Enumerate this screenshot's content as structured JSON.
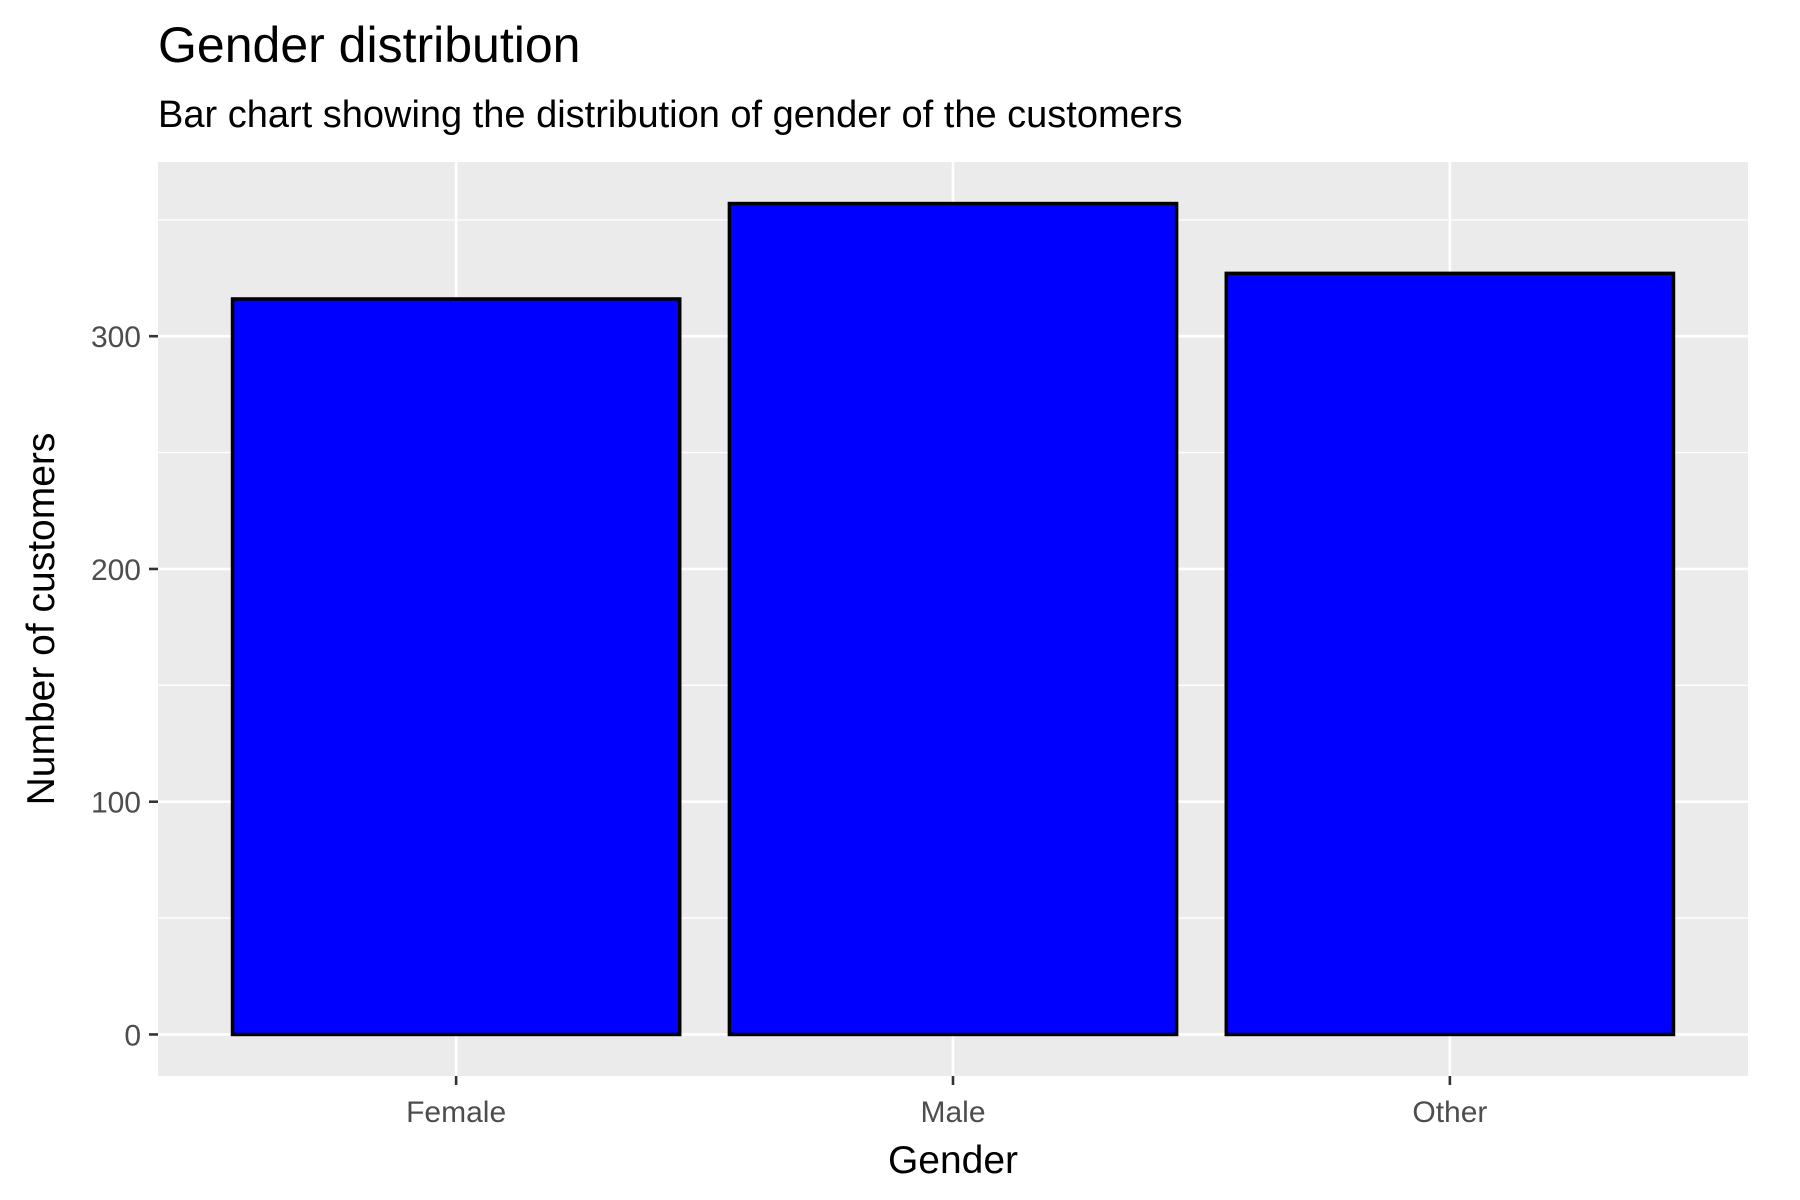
{
  "chart_data": {
    "type": "bar",
    "title": "Gender distribution",
    "subtitle": "Bar chart showing the distribution of gender of the customers",
    "xlabel": "Gender",
    "ylabel": "Number of customers",
    "categories": [
      "Female",
      "Male",
      "Other"
    ],
    "values": [
      316,
      357,
      327
    ],
    "ylim": [
      -17.85,
      374.85
    ],
    "yticks": [
      0,
      100,
      200,
      300
    ],
    "ytick_labels": [
      "0",
      "100",
      "200",
      "300"
    ],
    "grid": true,
    "legend": "none",
    "colors": {
      "bar_fill": "#0000FF",
      "bar_stroke": "#000000",
      "panel_background": "#EBEBEB",
      "grid": "#FFFFFF",
      "tick_label": "#4D4D4D"
    }
  }
}
